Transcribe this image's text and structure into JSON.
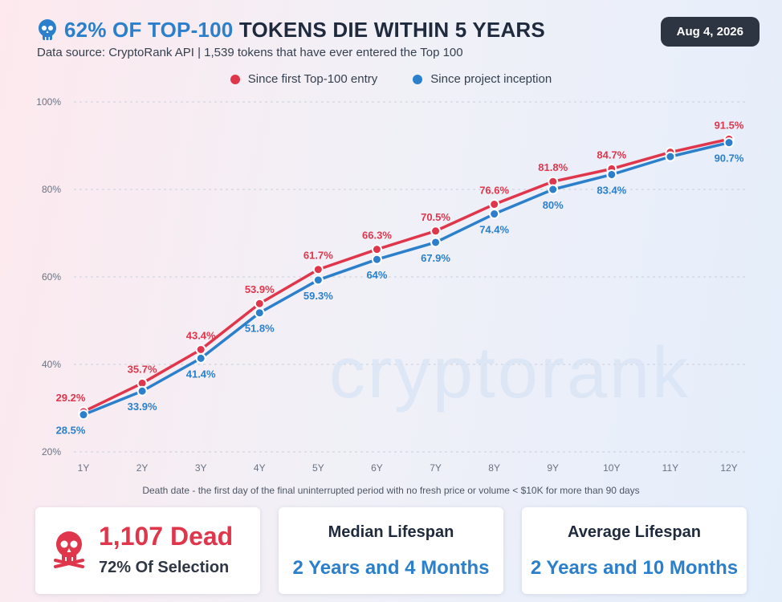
{
  "header": {
    "title_highlight": "62% OF TOP-100",
    "title_rest": " TOKENS DIE WITHIN 5 YEARS",
    "subtitle": "Data source: CryptoRank API | 1,539 tokens that have ever entered the Top 100",
    "date": "Aug 4, 2026"
  },
  "watermark": "cryptorank",
  "footnote": "Death date - the first day of the final uninterrupted period with no fresh price or volume < $10K for more than 90 days",
  "cards": {
    "dead": {
      "value": "1,107 Dead",
      "sub": "72% Of Selection"
    },
    "median": {
      "label": "Median Lifespan",
      "value": "2 Years and 4 Months"
    },
    "average": {
      "label": "Average Lifespan",
      "value": "2 Years and 10 Months"
    }
  },
  "colors": {
    "red": "#e0364c",
    "blue": "#2b7fcb",
    "dark": "#2d3442"
  },
  "chart_data": {
    "type": "line",
    "categories": [
      "1Y",
      "2Y",
      "3Y",
      "4Y",
      "5Y",
      "6Y",
      "7Y",
      "8Y",
      "9Y",
      "10Y",
      "11Y",
      "12Y"
    ],
    "ylim": [
      20,
      100
    ],
    "yticks": [
      20,
      40,
      60,
      80,
      100
    ],
    "ytick_labels": [
      "20%",
      "40%",
      "60%",
      "80%",
      "100%"
    ],
    "legend_position": "top-center",
    "grid": true,
    "series": [
      {
        "name": "Since first Top-100 entry",
        "color": "#e0364c",
        "values": [
          29.2,
          35.7,
          43.4,
          53.9,
          61.7,
          66.3,
          70.5,
          76.6,
          81.8,
          84.7,
          88.5,
          91.5
        ],
        "labels": [
          "29.2%",
          "35.7%",
          "43.4%",
          "53.9%",
          "61.7%",
          "66.3%",
          "70.5%",
          "76.6%",
          "81.8%",
          "84.7%",
          "",
          "91.5%"
        ]
      },
      {
        "name": "Since project inception",
        "color": "#2b7fcb",
        "values": [
          28.5,
          33.9,
          41.4,
          51.8,
          59.3,
          64.0,
          67.9,
          74.4,
          80.0,
          83.4,
          87.5,
          90.7
        ],
        "labels": [
          "28.5%",
          "33.9%",
          "41.4%",
          "51.8%",
          "59.3%",
          "64%",
          "67.9%",
          "74.4%",
          "80%",
          "83.4%",
          "",
          "90.7%"
        ]
      }
    ]
  }
}
